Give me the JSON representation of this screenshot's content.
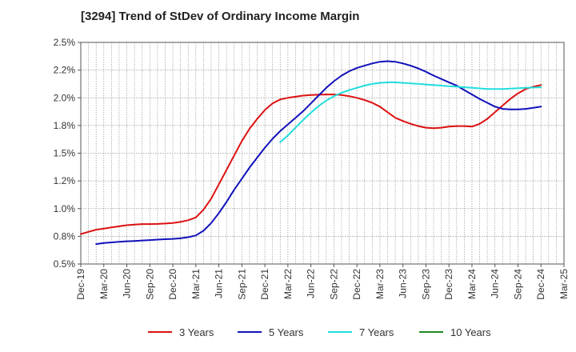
{
  "chart_data": {
    "type": "line",
    "title": "[3294]  Trend of StDev of Ordinary Income Margin",
    "xlabel": "",
    "ylabel": "",
    "x_ticks": [
      "Dec-19",
      "Mar-20",
      "Jun-20",
      "Sep-20",
      "Dec-20",
      "Mar-21",
      "Jun-21",
      "Sep-21",
      "Dec-21",
      "Mar-22",
      "Jun-22",
      "Sep-22",
      "Dec-22",
      "Mar-23",
      "Jun-23",
      "Sep-23",
      "Dec-23",
      "Mar-24",
      "Jun-24",
      "Sep-24",
      "Dec-24",
      "Mar-25"
    ],
    "y_ticks": [
      "0.5%",
      "0.8%",
      "1.0%",
      "1.2%",
      "1.5%",
      "1.8%",
      "2.0%",
      "2.2%",
      "2.5%"
    ],
    "ylim": [
      0.5,
      2.5
    ],
    "y_unit": "%",
    "grid": true,
    "legend_position": "bottom",
    "series": [
      {
        "name": "3 Years",
        "color": "#dd1111",
        "x": [
          "Dec-19",
          "Jan-20",
          "Feb-20",
          "Mar-20",
          "Apr-20",
          "May-20",
          "Jun-20",
          "Jul-20",
          "Aug-20",
          "Sep-20",
          "Oct-20",
          "Nov-20",
          "Dec-20",
          "Jan-21",
          "Feb-21",
          "Mar-21",
          "Apr-21",
          "May-21",
          "Jun-21",
          "Jul-21",
          "Aug-21",
          "Sep-21",
          "Oct-21",
          "Nov-21",
          "Dec-21",
          "Jan-22",
          "Feb-22",
          "Mar-22",
          "Apr-22",
          "May-22",
          "Jun-22",
          "Jul-22",
          "Aug-22",
          "Sep-22",
          "Oct-22",
          "Nov-22",
          "Dec-22",
          "Jan-23",
          "Feb-23",
          "Mar-23",
          "Apr-23",
          "May-23",
          "Jun-23",
          "Jul-23",
          "Aug-23",
          "Sep-23",
          "Oct-23",
          "Nov-23",
          "Dec-23",
          "Jan-24",
          "Feb-24",
          "Mar-24",
          "Apr-24",
          "May-24",
          "Jun-24",
          "Jul-24",
          "Aug-24",
          "Sep-24",
          "Oct-24",
          "Nov-24",
          "Dec-24"
        ],
        "values": [
          0.77,
          0.79,
          0.81,
          0.82,
          0.83,
          0.84,
          0.85,
          0.855,
          0.86,
          0.86,
          0.862,
          0.865,
          0.87,
          0.88,
          0.895,
          0.92,
          0.99,
          1.09,
          1.22,
          1.35,
          1.48,
          1.61,
          1.72,
          1.81,
          1.89,
          1.95,
          1.985,
          2.0,
          2.01,
          2.02,
          2.025,
          2.028,
          2.03,
          2.03,
          2.025,
          2.015,
          2.0,
          1.98,
          1.955,
          1.92,
          1.87,
          1.82,
          1.79,
          1.765,
          1.745,
          1.73,
          1.725,
          1.73,
          1.74,
          1.745,
          1.745,
          1.74,
          1.765,
          1.81,
          1.87,
          1.93,
          1.99,
          2.04,
          2.08,
          2.1,
          2.115
        ]
      },
      {
        "name": "5 Years",
        "color": "#1111bb",
        "x": [
          "Feb-20",
          "Mar-20",
          "Apr-20",
          "May-20",
          "Jun-20",
          "Jul-20",
          "Aug-20",
          "Sep-20",
          "Oct-20",
          "Nov-20",
          "Dec-20",
          "Jan-21",
          "Feb-21",
          "Mar-21",
          "Apr-21",
          "May-21",
          "Jun-21",
          "Jul-21",
          "Aug-21",
          "Sep-21",
          "Oct-21",
          "Nov-21",
          "Dec-21",
          "Jan-22",
          "Feb-22",
          "Mar-22",
          "Apr-22",
          "May-22",
          "Jun-22",
          "Jul-22",
          "Aug-22",
          "Sep-22",
          "Oct-22",
          "Nov-22",
          "Dec-22",
          "Jan-23",
          "Feb-23",
          "Mar-23",
          "Apr-23",
          "May-23",
          "Jun-23",
          "Jul-23",
          "Aug-23",
          "Sep-23",
          "Oct-23",
          "Nov-23",
          "Dec-23",
          "Jan-24",
          "Feb-24",
          "Mar-24",
          "Apr-24",
          "May-24",
          "Jun-24",
          "Jul-24",
          "Aug-24",
          "Sep-24",
          "Oct-24",
          "Nov-24",
          "Dec-24"
        ],
        "values": [
          0.68,
          0.69,
          0.695,
          0.7,
          0.705,
          0.708,
          0.712,
          0.716,
          0.72,
          0.724,
          0.727,
          0.732,
          0.742,
          0.758,
          0.8,
          0.87,
          0.96,
          1.06,
          1.17,
          1.27,
          1.37,
          1.46,
          1.55,
          1.63,
          1.7,
          1.76,
          1.82,
          1.88,
          1.95,
          2.02,
          2.09,
          2.15,
          2.2,
          2.24,
          2.27,
          2.29,
          2.31,
          2.325,
          2.33,
          2.325,
          2.31,
          2.29,
          2.265,
          2.235,
          2.2,
          2.17,
          2.14,
          2.11,
          2.07,
          2.03,
          1.99,
          1.955,
          1.92,
          1.9,
          1.895,
          1.895,
          1.9,
          1.91,
          1.92
        ]
      },
      {
        "name": "7 Years",
        "color": "#22dddd",
        "x": [
          "Feb-22",
          "Mar-22",
          "Apr-22",
          "May-22",
          "Jun-22",
          "Jul-22",
          "Aug-22",
          "Sep-22",
          "Oct-22",
          "Nov-22",
          "Dec-22",
          "Jan-23",
          "Feb-23",
          "Mar-23",
          "Apr-23",
          "May-23",
          "Jun-23",
          "Jul-23",
          "Aug-23",
          "Sep-23",
          "Oct-23",
          "Nov-23",
          "Dec-23",
          "Jan-24",
          "Feb-24",
          "Mar-24",
          "Apr-24",
          "May-24",
          "Jun-24",
          "Jul-24",
          "Aug-24",
          "Sep-24",
          "Oct-24",
          "Nov-24",
          "Dec-24"
        ],
        "values": [
          1.6,
          1.66,
          1.73,
          1.8,
          1.865,
          1.925,
          1.975,
          2.015,
          2.045,
          2.07,
          2.09,
          2.11,
          2.125,
          2.135,
          2.14,
          2.14,
          2.135,
          2.13,
          2.125,
          2.12,
          2.115,
          2.11,
          2.105,
          2.1,
          2.095,
          2.09,
          2.085,
          2.08,
          2.08,
          2.08,
          2.083,
          2.087,
          2.09,
          2.093,
          2.095
        ]
      },
      {
        "name": "10 Years",
        "color": "#228822",
        "x": [],
        "values": []
      }
    ]
  }
}
